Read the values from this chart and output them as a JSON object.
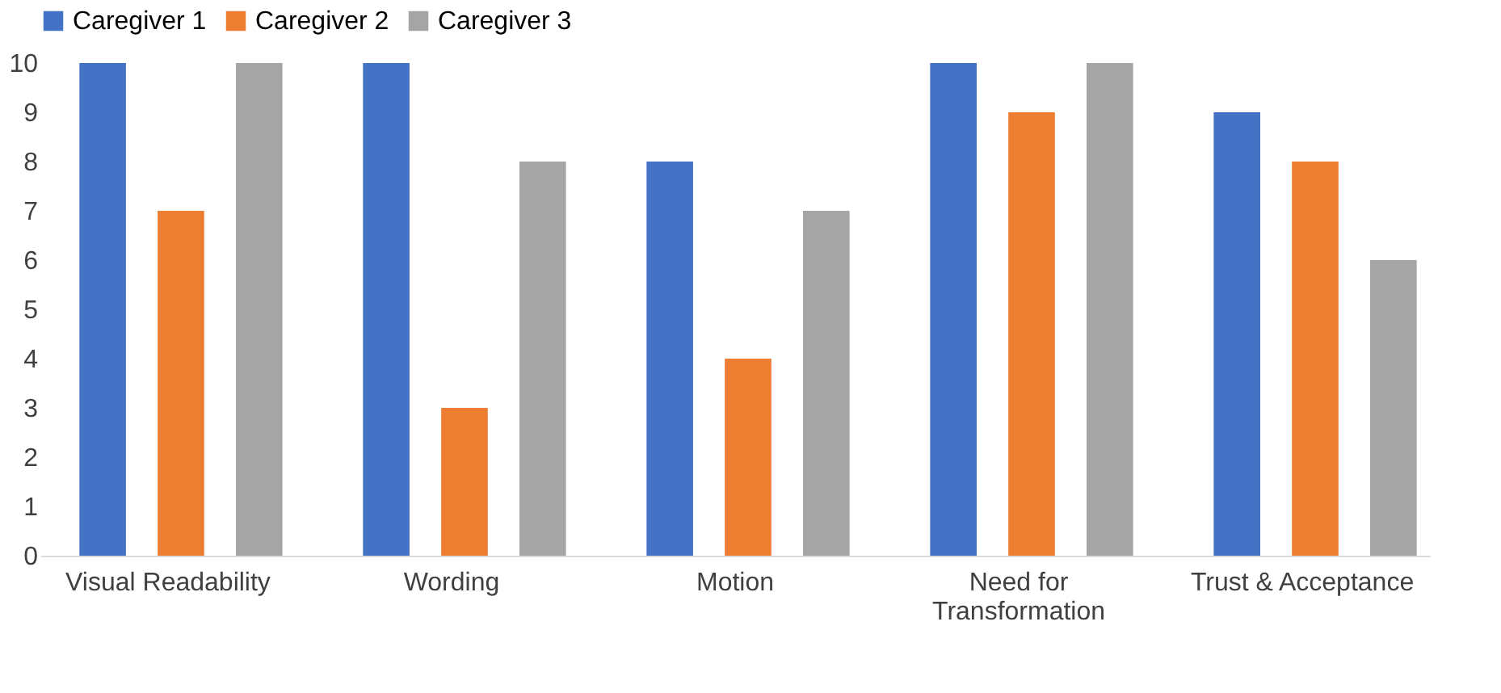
{
  "chart_data": {
    "type": "bar",
    "categories": [
      "Visual Readability",
      "Wording",
      "Motion",
      "Need for Transformation",
      "Trust & Acceptance"
    ],
    "series": [
      {
        "name": "Caregiver 1",
        "color": "#4472c4",
        "values": [
          10,
          10,
          8,
          10,
          9
        ]
      },
      {
        "name": "Caregiver 2",
        "color": "#ed7d31",
        "values": [
          7,
          3,
          4,
          9,
          8
        ]
      },
      {
        "name": "Caregiver 3",
        "color": "#a5a5a5",
        "values": [
          10,
          8,
          7,
          10,
          6
        ]
      }
    ],
    "ylim": [
      0,
      10
    ],
    "yticks": [
      0,
      1,
      2,
      3,
      4,
      5,
      6,
      7,
      8,
      9,
      10
    ],
    "grid": false,
    "legend": "top"
  }
}
